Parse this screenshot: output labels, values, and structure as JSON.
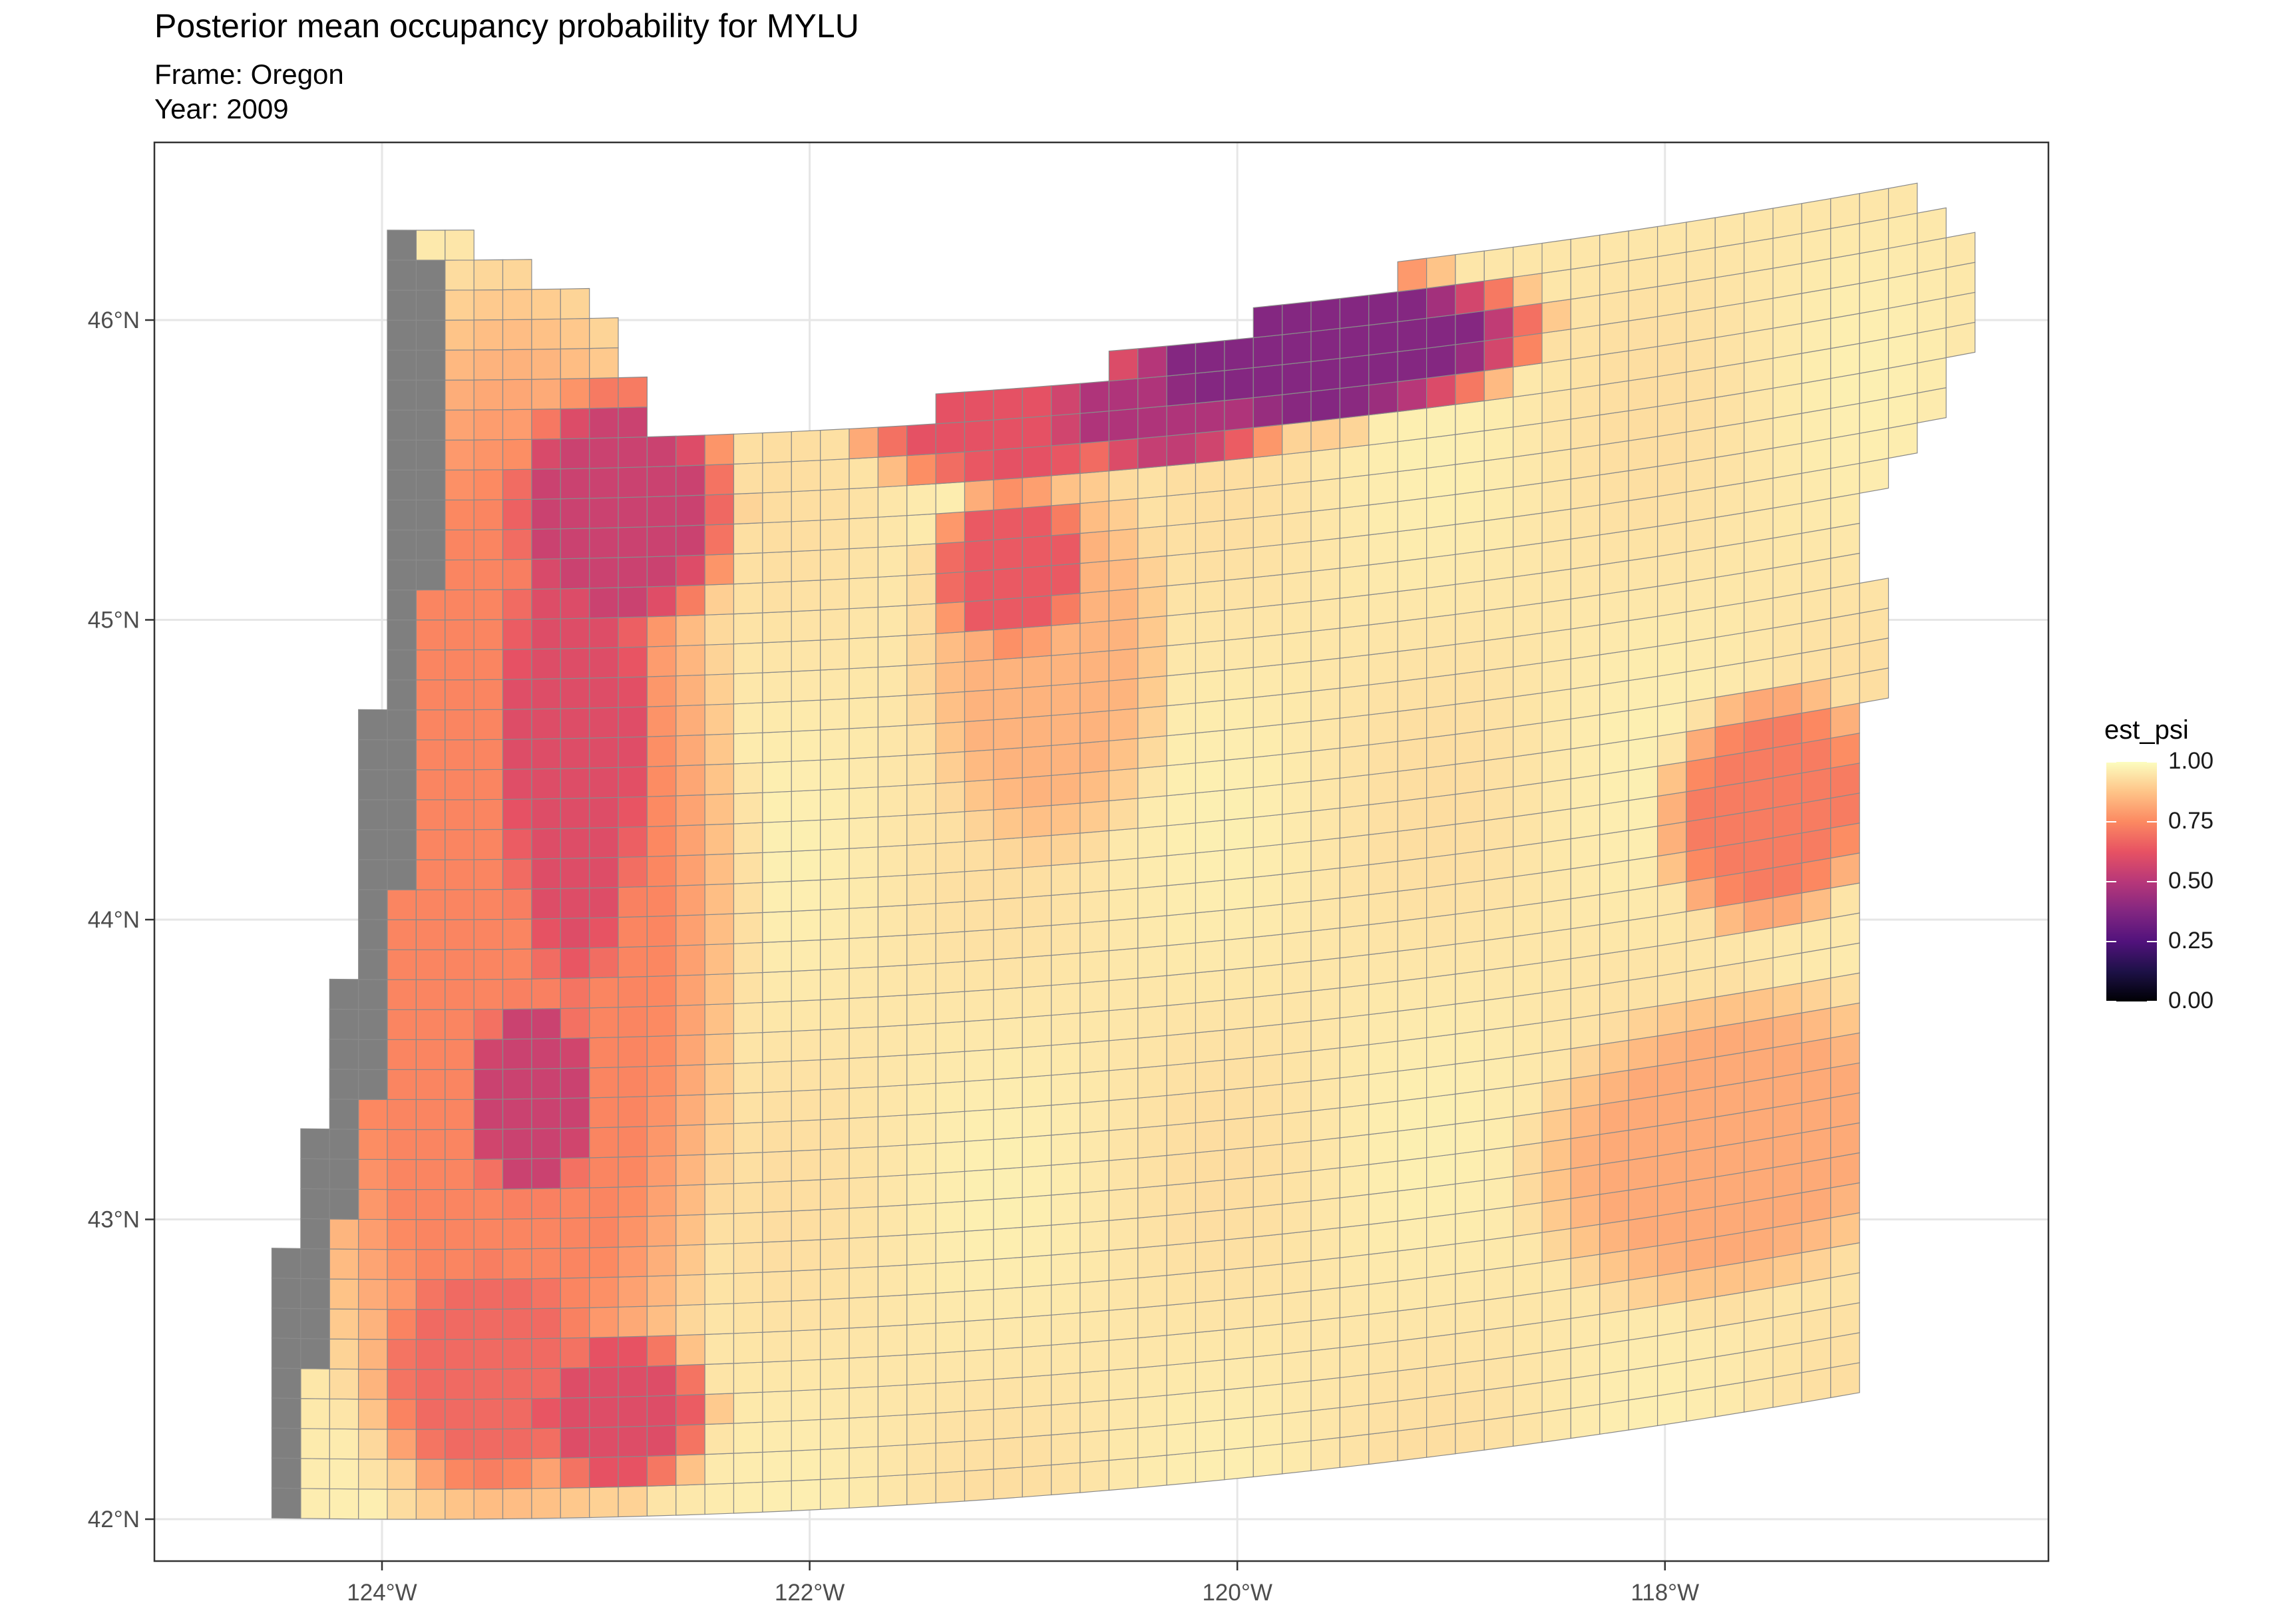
{
  "title": "Posterior mean occupancy probability for MYLU",
  "subtitle_frame": "Frame: Oregon",
  "subtitle_year": "Year: 2009",
  "axes": {
    "x_ticks": [
      {
        "lon": -124,
        "label": "124°W"
      },
      {
        "lon": -122,
        "label": "122°W"
      },
      {
        "lon": -120,
        "label": "120°W"
      },
      {
        "lon": -118,
        "label": "118°W"
      }
    ],
    "y_ticks": [
      {
        "lat": 42,
        "label": "42°N"
      },
      {
        "lat": 43,
        "label": "43°N"
      },
      {
        "lat": 44,
        "label": "44°N"
      },
      {
        "lat": 45,
        "label": "45°N"
      },
      {
        "lat": 46,
        "label": "46°N"
      }
    ],
    "xlim": [
      -125.07,
      -116.13
    ],
    "ylim": [
      41.91,
      46.59
    ]
  },
  "legend": {
    "title": "est_psi",
    "labels": [
      "1.00",
      "0.75",
      "0.50",
      "0.25",
      "0.00"
    ],
    "colormap": "magma",
    "range": [
      0,
      1
    ]
  },
  "colors": {
    "na_cell": "#7f7f7f",
    "cell_border": "#8a8a8a",
    "grid_line": "#e6e6e6",
    "panel_border": "#333333"
  },
  "map": {
    "region": "Oregon",
    "grid_cell_size_deg": 0.1
  }
}
